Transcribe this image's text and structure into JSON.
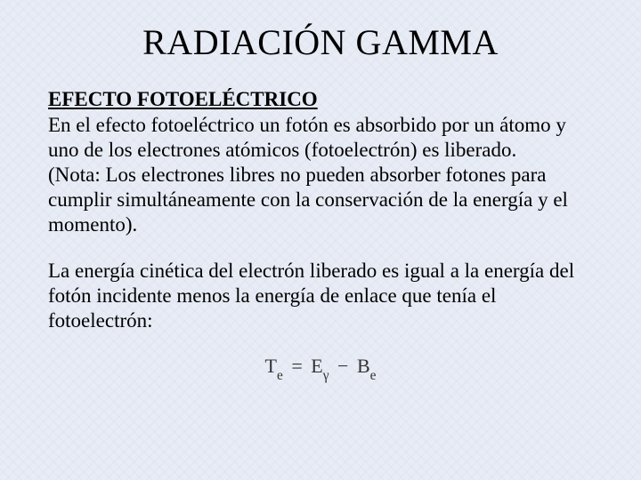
{
  "slide": {
    "background_color": "#e8ecf5",
    "pattern_color": "#c8d2e6",
    "text_color": "#000000",
    "title": "RADIACIÓN GAMMA",
    "title_fontsize": 40,
    "heading": "EFECTO FOTOELÉCTRICO",
    "heading_fontsize": 23,
    "heading_underline": true,
    "body_fontsize": 23,
    "paragraph1": " En el efecto fotoeléctrico un fotón es absorbido por un átomo y uno de los electrones atómicos (fotoelectrón) es liberado.",
    "paragraph1_note": " (Nota: Los electrones libres no pueden absorber fotones para cumplir simultáneamente con la conservación de la energía y el momento).",
    "paragraph2": "La energía cinética del electrón liberado es igual a la energía del fotón incidente menos la energía de enlace que tenía el fotoelectrón:",
    "equation": {
      "lhs_var": "T",
      "lhs_sub": "e",
      "rhs1_var": "E",
      "rhs1_sub": "γ",
      "op": "−",
      "rhs2_var": "B",
      "rhs2_sub": "e",
      "eq": "="
    }
  }
}
